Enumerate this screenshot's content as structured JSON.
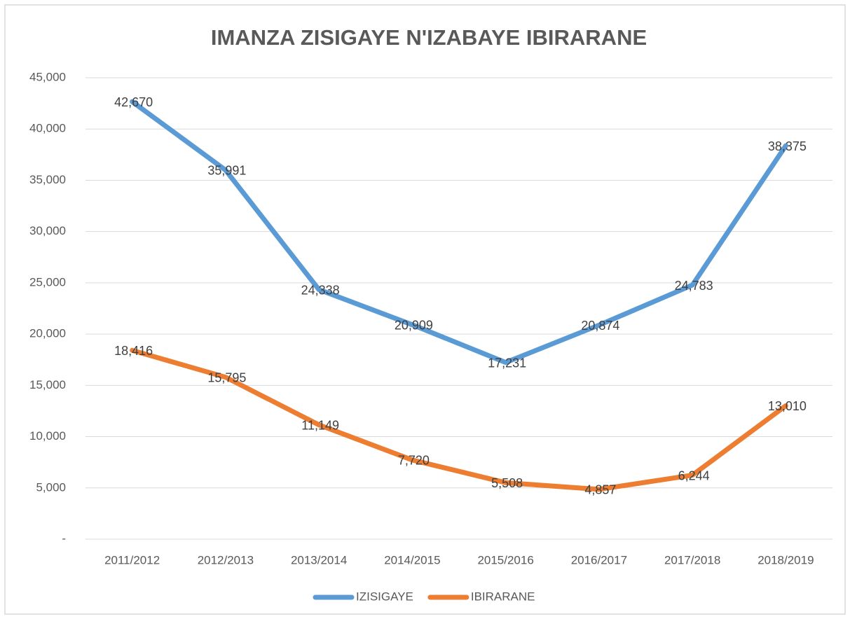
{
  "chart_data": {
    "type": "line",
    "title": "IMANZA ZISIGAYE  N'IZABAYE IBIRARANE",
    "categories": [
      "2011/2012",
      "2012/2013",
      "2013/2014",
      "2014/2015",
      "2015/2016",
      "2016/2017",
      "2017/2018",
      "2018/2019"
    ],
    "series": [
      {
        "name": "IZISIGAYE",
        "color": "#5b9bd5",
        "values": [
          42670,
          35991,
          24338,
          20909,
          17231,
          20874,
          24783,
          38375
        ],
        "value_labels": [
          "42,670",
          "35,991",
          "24,338",
          "20,909",
          "17,231",
          "20,874",
          "24,783",
          "38,375"
        ]
      },
      {
        "name": "IBIRARANE",
        "color": "#ed7d31",
        "values": [
          18416,
          15795,
          11149,
          7720,
          5508,
          4857,
          6244,
          13010
        ],
        "value_labels": [
          "18,416",
          "15,795",
          "11,149",
          "7,720",
          "5,508",
          "4,857",
          "6,244",
          "13,010"
        ]
      }
    ],
    "ylim": [
      0,
      45000
    ],
    "yticks": [
      {
        "value": 0,
        "label": "-"
      },
      {
        "value": 5000,
        "label": "5,000"
      },
      {
        "value": 10000,
        "label": "10,000"
      },
      {
        "value": 15000,
        "label": "15,000"
      },
      {
        "value": 20000,
        "label": "20,000"
      },
      {
        "value": 25000,
        "label": "25,000"
      },
      {
        "value": 30000,
        "label": "30,000"
      },
      {
        "value": 35000,
        "label": "35,000"
      },
      {
        "value": 40000,
        "label": "40,000"
      },
      {
        "value": 45000,
        "label": "45,000"
      }
    ],
    "grid": true,
    "legend": "bottom"
  }
}
